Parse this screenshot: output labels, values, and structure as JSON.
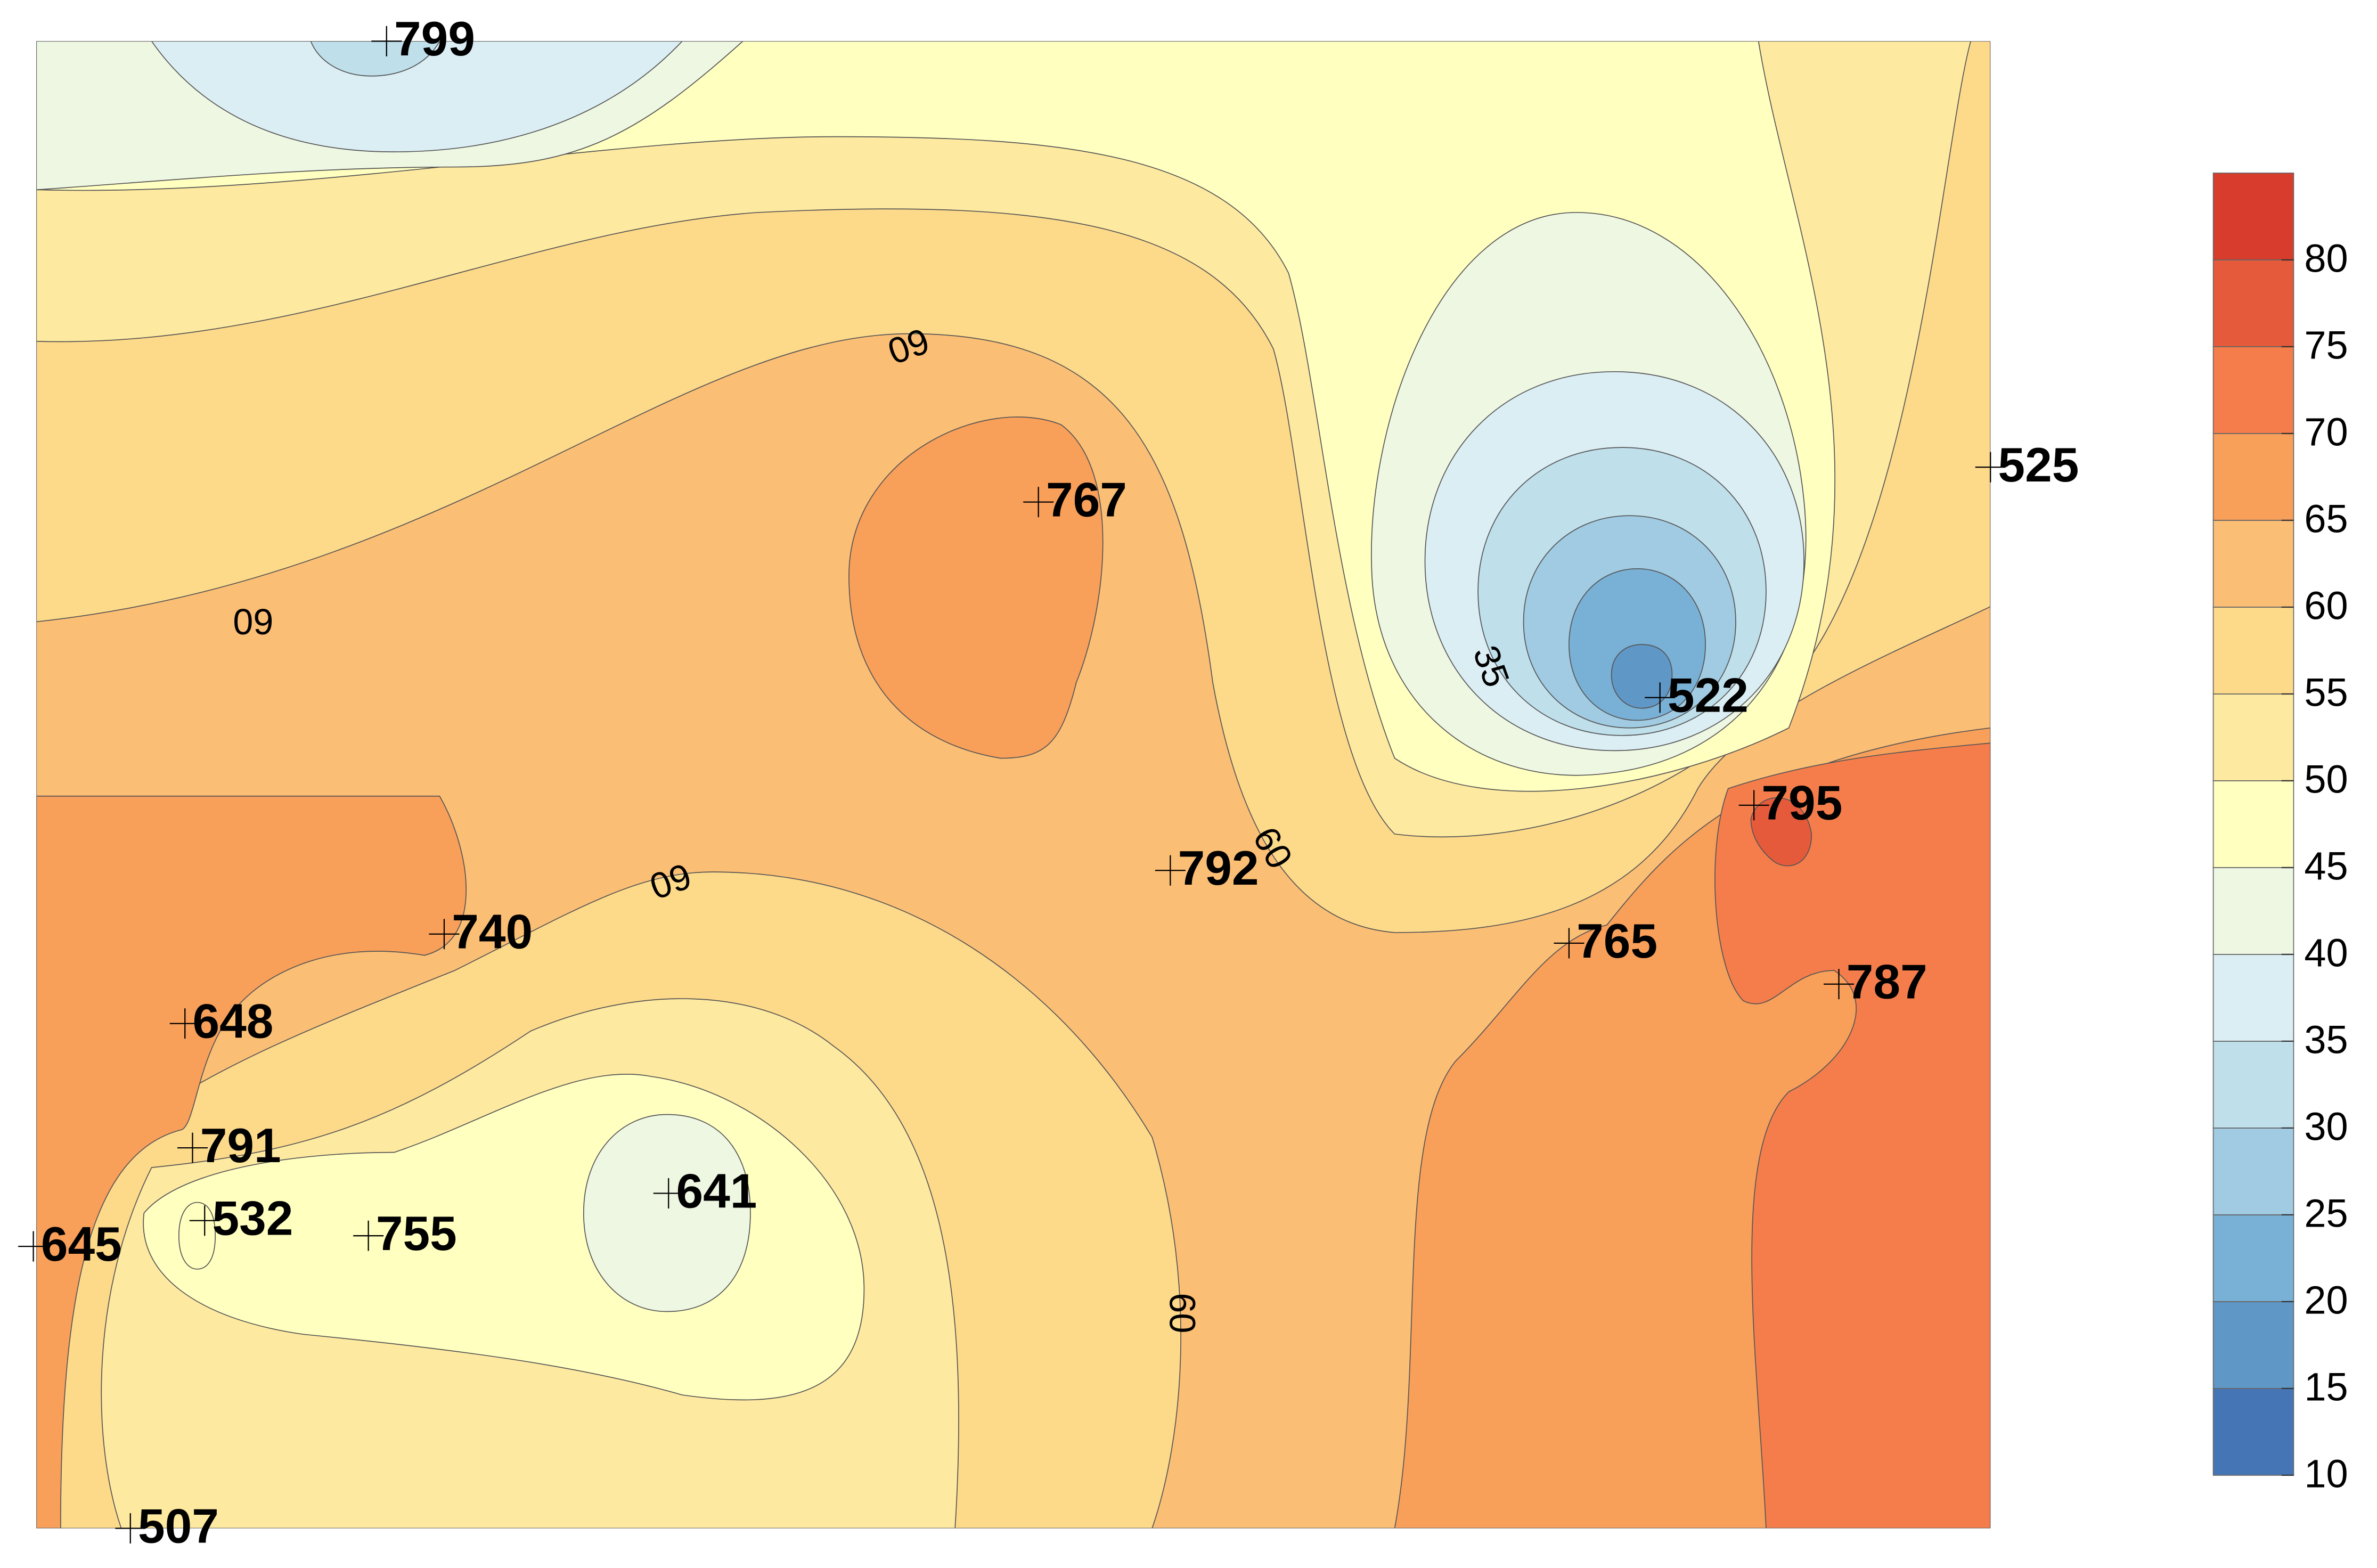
{
  "chart_data": {
    "type": "contour",
    "levels": [
      10,
      15,
      20,
      25,
      30,
      35,
      40,
      45,
      50,
      55,
      60,
      65,
      70,
      75,
      80,
      85
    ],
    "colors": [
      "#4575b4",
      "#5f97c6",
      "#79b0d5",
      "#a0cbe2",
      "#bfdfeb",
      "#dbeef4",
      "#eef7e2",
      "#ffffc0",
      "#fee9a0",
      "#fdd98a",
      "#fbbe75",
      "#f89f5a",
      "#f47d4b",
      "#e55a3a",
      "#d73c2c"
    ],
    "clim": [
      10,
      85
    ],
    "cticks": [
      10,
      15,
      20,
      25,
      30,
      35,
      40,
      45,
      50,
      55,
      60,
      65,
      70,
      75,
      80
    ],
    "contour_labels": [
      "09",
      "09",
      "09",
      "60",
      "60",
      "35"
    ],
    "stations": [
      "799",
      "525",
      "767",
      "522",
      "795",
      "792",
      "740",
      "765",
      "648",
      "787",
      "791",
      "641",
      "532",
      "755",
      "645",
      "507"
    ]
  }
}
